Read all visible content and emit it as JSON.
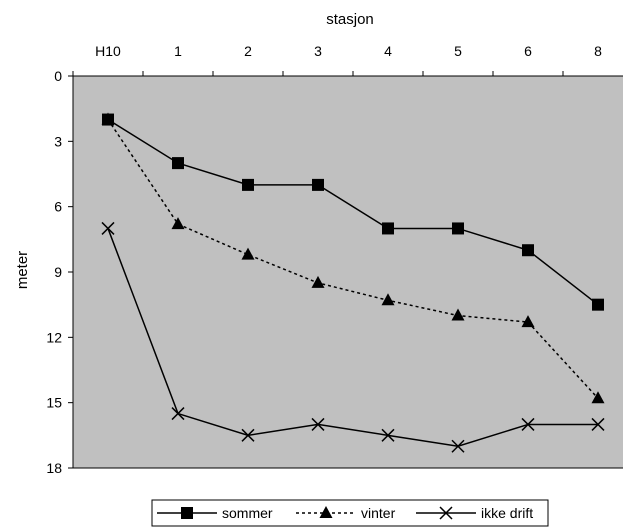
{
  "chart_data": {
    "type": "line",
    "xlabel": "stasjon",
    "ylabel": "meter",
    "categories": [
      "H10",
      "1",
      "2",
      "3",
      "4",
      "5",
      "6",
      "8"
    ],
    "yticks": [
      "0",
      "3",
      "6",
      "9",
      "12",
      "15",
      "18"
    ],
    "ylim": [
      0,
      18
    ],
    "y_inverted": true,
    "x_axis_position": "top",
    "plot_background": "#c0c0c0",
    "grid": false,
    "legend_position": "bottom-center",
    "series": [
      {
        "name": "sommer",
        "marker": "square",
        "line": "solid",
        "values": [
          2,
          4,
          5,
          5,
          7,
          7,
          8,
          10.5
        ]
      },
      {
        "name": "vinter",
        "marker": "triangle",
        "line": "dotted",
        "values": [
          2,
          6.8,
          8.2,
          9.5,
          10.3,
          11,
          11.3,
          14.8
        ]
      },
      {
        "name": "ikke drift",
        "marker": "x",
        "line": "solid",
        "values": [
          7,
          15.5,
          16.5,
          16,
          16.5,
          17,
          16,
          16
        ]
      }
    ]
  }
}
